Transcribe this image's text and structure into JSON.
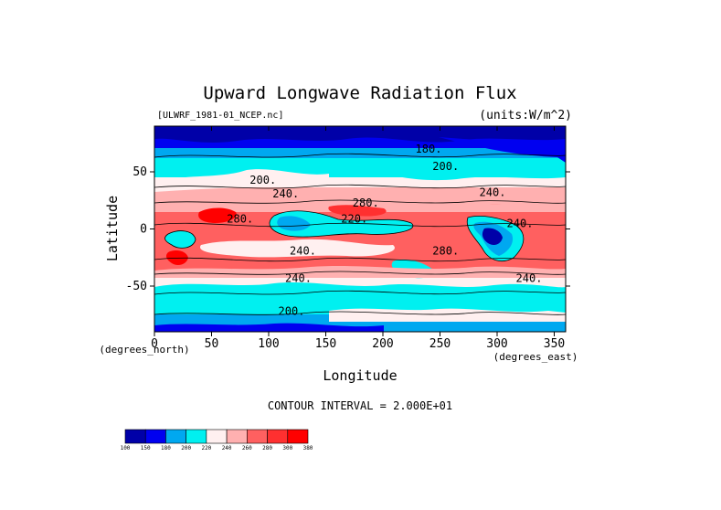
{
  "chart_data": {
    "type": "heatmap",
    "title": "Upward Longwave Radiation Flux",
    "subtitle_left": "[ULWRF_1981-01_NCEP.nc]",
    "units_label": "(units:W/m^2)",
    "xlabel": "Longitude",
    "ylabel": "Latitude",
    "x_unit_label": "(degrees_east)",
    "y_unit_label": "(degrees_north)",
    "xlim": [
      0,
      360
    ],
    "ylim": [
      -90,
      90
    ],
    "x_ticks": [
      0,
      50,
      100,
      150,
      200,
      250,
      300,
      350
    ],
    "y_ticks": [
      50,
      0,
      -50
    ],
    "contour_interval_label": "CONTOUR INTERVAL = 2.000E+01",
    "colorbar": {
      "levels": [
        100,
        150,
        180,
        200,
        220,
        240,
        260,
        280,
        300,
        380
      ],
      "colors": [
        "#0000a8",
        "#0000f0",
        "#00a8f0",
        "#00f0f0",
        "#fff0f0",
        "#ffb0b0",
        "#ff6060",
        "#ff3030",
        "#ff0000"
      ]
    },
    "contour_labels": [
      {
        "text": "180.",
        "lon": 240,
        "lat": 70
      },
      {
        "text": "200.",
        "lon": 255,
        "lat": 55
      },
      {
        "text": "200.",
        "lon": 95,
        "lat": 43
      },
      {
        "text": "240.",
        "lon": 115,
        "lat": 31
      },
      {
        "text": "240.",
        "lon": 296,
        "lat": 32
      },
      {
        "text": "280.",
        "lon": 185,
        "lat": 23
      },
      {
        "text": "280.",
        "lon": 75,
        "lat": 9
      },
      {
        "text": "220.",
        "lon": 175,
        "lat": 9
      },
      {
        "text": "240.",
        "lon": 320,
        "lat": 5
      },
      {
        "text": "240.",
        "lon": 130,
        "lat": -19
      },
      {
        "text": "280.",
        "lon": 255,
        "lat": -19
      },
      {
        "text": "240.",
        "lon": 126,
        "lat": -43
      },
      {
        "text": "240.",
        "lon": 328,
        "lat": -43
      },
      {
        "text": "200.",
        "lon": 120,
        "lat": -72
      }
    ]
  }
}
